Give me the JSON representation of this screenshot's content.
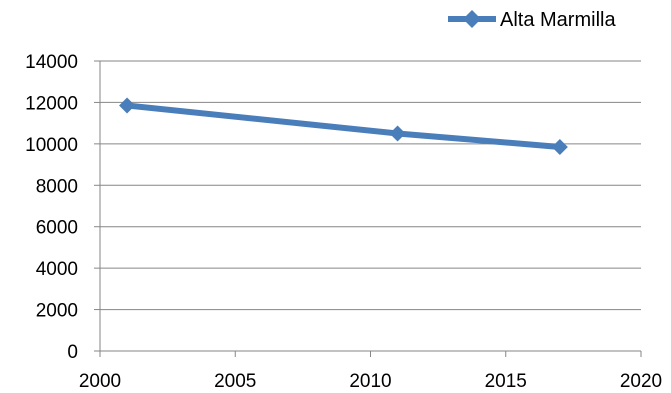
{
  "chart_data": {
    "type": "line",
    "title": "",
    "xlabel": "",
    "ylabel": "",
    "xlim": [
      2000,
      2020
    ],
    "ylim": [
      0,
      14000
    ],
    "x_ticks": [
      "2000",
      "2005",
      "2010",
      "2015",
      "2020"
    ],
    "y_ticks": [
      "0",
      "2000",
      "4000",
      "6000",
      "8000",
      "10000",
      "12000",
      "14000"
    ],
    "grid": "horizontal",
    "legend_position": "top-right",
    "marker": "diamond",
    "series": [
      {
        "name": "Alta Marmilla",
        "color": "#4a7ebb",
        "x": [
          2001,
          2011,
          2017
        ],
        "y": [
          11850,
          10500,
          9850
        ]
      }
    ]
  }
}
